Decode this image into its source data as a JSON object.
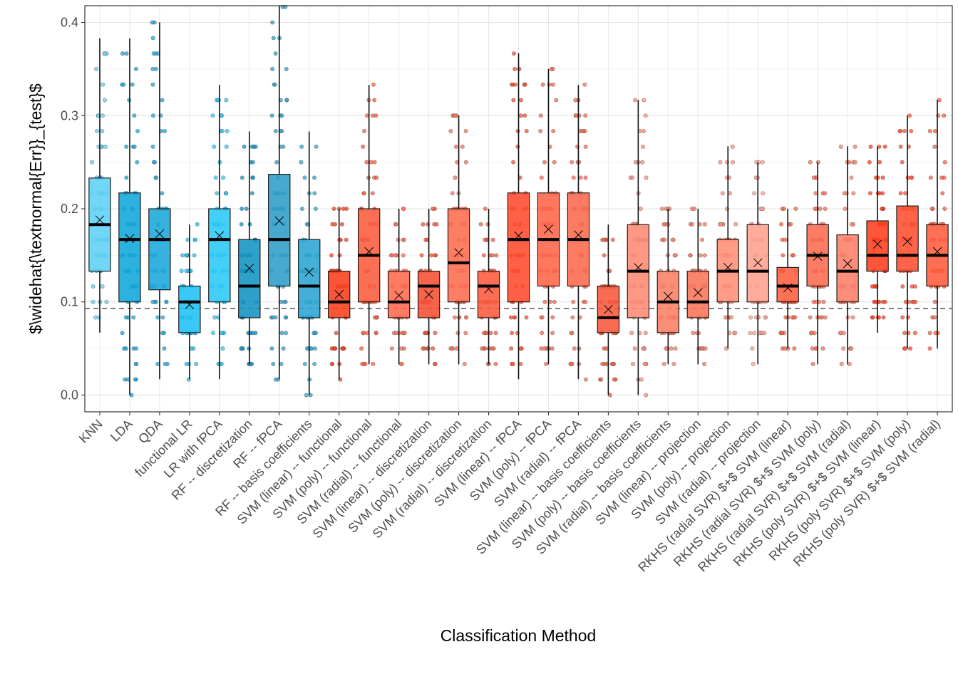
{
  "chart_data": {
    "type": "box",
    "title": "",
    "xlabel": "Classification Method",
    "ylabel": "$\\widehat{\\textnormal{Err}}_{test}$",
    "ylim": [
      -0.018,
      0.418
    ],
    "yticks": [
      0.0,
      0.1,
      0.2,
      0.3,
      0.4
    ],
    "ytick_labels": [
      "0.0",
      "0.1",
      "0.2",
      "0.3",
      "0.4"
    ],
    "reference_line": 0.093,
    "grid": true,
    "legend": "none",
    "categories": [
      "KNN",
      "LDA",
      "QDA",
      "functional LR",
      "LR with fPCA",
      "RF -- discretization",
      "RF -- fPCA",
      "RF -- basis coefficients",
      "SVM (linear) -- functional",
      "SVM (poly) -- functional",
      "SVM (radial) -- functional",
      "SVM (linear) -- discretization",
      "SVM (poly) -- discretization",
      "SVM (radial) -- discretization",
      "SVM (linear) -- fPCA",
      "SVM (poly) -- fPCA",
      "SVM (radial) -- fPCA",
      "SVM (linear) -- basis coefficients",
      "SVM (poly) -- basis coefficients",
      "SVM (radial) -- basis coefficients",
      "SVM (linear) -- projection",
      "SVM (poly) -- projection",
      "SVM (radial) -- projection",
      "RKHS (radial SVR) $+$ SVM (linear)",
      "RKHS (radial SVR) $+$ SVM (poly)",
      "RKHS (radial SVR) $+$ SVM (radial)",
      "RKHS (poly SVR) $+$ SVM (linear)",
      "RKHS (poly SVR) $+$ SVM (poly)",
      "RKHS (poly SVR) $+$ SVM (radial)"
    ],
    "boxes": [
      {
        "min": 0.067,
        "q1": 0.133,
        "median": 0.183,
        "q3": 0.233,
        "max": 0.383,
        "mean": 0.188,
        "color": "#5FD0F5"
      },
      {
        "min": 0.0,
        "q1": 0.1,
        "median": 0.167,
        "q3": 0.217,
        "max": 0.383,
        "mean": 0.168,
        "color": "#10A6DB"
      },
      {
        "min": 0.017,
        "q1": 0.113,
        "median": 0.167,
        "q3": 0.2,
        "max": 0.4,
        "mean": 0.173,
        "color": "#1BA7DB"
      },
      {
        "min": 0.017,
        "q1": 0.067,
        "median": 0.1,
        "q3": 0.117,
        "max": 0.183,
        "mean": 0.097,
        "color": "#1FC2F5"
      },
      {
        "min": 0.017,
        "q1": 0.1,
        "median": 0.167,
        "q3": 0.2,
        "max": 0.333,
        "mean": 0.171,
        "color": "#29C8F7"
      },
      {
        "min": 0.033,
        "q1": 0.083,
        "median": 0.117,
        "q3": 0.167,
        "max": 0.283,
        "mean": 0.136,
        "color": "#1193C2"
      },
      {
        "min": 0.017,
        "q1": 0.117,
        "median": 0.167,
        "q3": 0.237,
        "max": 0.418,
        "mean": 0.187,
        "color": "#2D9DC7"
      },
      {
        "min": 0.0,
        "q1": 0.083,
        "median": 0.117,
        "q3": 0.167,
        "max": 0.283,
        "mean": 0.132,
        "color": "#2BA5D2"
      },
      {
        "min": 0.017,
        "q1": 0.083,
        "median": 0.1,
        "q3": 0.133,
        "max": 0.2,
        "mean": 0.108,
        "color": "#F83E1E"
      },
      {
        "min": 0.033,
        "q1": 0.1,
        "median": 0.15,
        "q3": 0.2,
        "max": 0.333,
        "mean": 0.154,
        "color": "#FC5B3D"
      },
      {
        "min": 0.033,
        "q1": 0.083,
        "median": 0.1,
        "q3": 0.133,
        "max": 0.2,
        "mean": 0.107,
        "color": "#FF6A4E"
      },
      {
        "min": 0.033,
        "q1": 0.083,
        "median": 0.117,
        "q3": 0.133,
        "max": 0.2,
        "mean": 0.108,
        "color": "#F54F33"
      },
      {
        "min": 0.033,
        "q1": 0.1,
        "median": 0.142,
        "q3": 0.2,
        "max": 0.3,
        "mean": 0.153,
        "color": "#FD6C50"
      },
      {
        "min": 0.033,
        "q1": 0.083,
        "median": 0.117,
        "q3": 0.133,
        "max": 0.2,
        "mean": 0.114,
        "color": "#F85A3E"
      },
      {
        "min": 0.017,
        "q1": 0.1,
        "median": 0.167,
        "q3": 0.217,
        "max": 0.367,
        "mean": 0.171,
        "color": "#FF4A2C"
      },
      {
        "min": 0.033,
        "q1": 0.117,
        "median": 0.167,
        "q3": 0.217,
        "max": 0.35,
        "mean": 0.178,
        "color": "#FF6449"
      },
      {
        "min": 0.017,
        "q1": 0.117,
        "median": 0.167,
        "q3": 0.217,
        "max": 0.333,
        "mean": 0.172,
        "color": "#FC6A4D"
      },
      {
        "min": 0.0,
        "q1": 0.067,
        "median": 0.083,
        "q3": 0.117,
        "max": 0.183,
        "mean": 0.092,
        "color": "#F7583C"
      },
      {
        "min": 0.0,
        "q1": 0.083,
        "median": 0.133,
        "q3": 0.183,
        "max": 0.317,
        "mean": 0.137,
        "color": "#FD8A74"
      },
      {
        "min": 0.033,
        "q1": 0.067,
        "median": 0.1,
        "q3": 0.133,
        "max": 0.2,
        "mean": 0.106,
        "color": "#FA7E66"
      },
      {
        "min": 0.033,
        "q1": 0.083,
        "median": 0.1,
        "q3": 0.133,
        "max": 0.2,
        "mean": 0.11,
        "color": "#F8745A"
      },
      {
        "min": 0.05,
        "q1": 0.1,
        "median": 0.133,
        "q3": 0.167,
        "max": 0.267,
        "mean": 0.137,
        "color": "#FF8E78"
      },
      {
        "min": 0.033,
        "q1": 0.1,
        "median": 0.133,
        "q3": 0.183,
        "max": 0.25,
        "mean": 0.142,
        "color": "#FFA08E"
      },
      {
        "min": 0.05,
        "q1": 0.1,
        "median": 0.117,
        "q3": 0.137,
        "max": 0.2,
        "mean": 0.115,
        "color": "#FF5F40"
      },
      {
        "min": 0.033,
        "q1": 0.117,
        "median": 0.15,
        "q3": 0.183,
        "max": 0.25,
        "mean": 0.149,
        "color": "#FC6B50"
      },
      {
        "min": 0.033,
        "q1": 0.1,
        "median": 0.133,
        "q3": 0.172,
        "max": 0.267,
        "mean": 0.141,
        "color": "#FD7E66"
      },
      {
        "min": 0.067,
        "q1": 0.133,
        "median": 0.15,
        "q3": 0.187,
        "max": 0.267,
        "mean": 0.162,
        "color": "#FF3D1E"
      },
      {
        "min": 0.05,
        "q1": 0.133,
        "median": 0.15,
        "q3": 0.203,
        "max": 0.3,
        "mean": 0.165,
        "color": "#FF4F2F"
      },
      {
        "min": 0.05,
        "q1": 0.117,
        "median": 0.15,
        "q3": 0.183,
        "max": 0.317,
        "mean": 0.154,
        "color": "#FF5C3D"
      }
    ]
  }
}
